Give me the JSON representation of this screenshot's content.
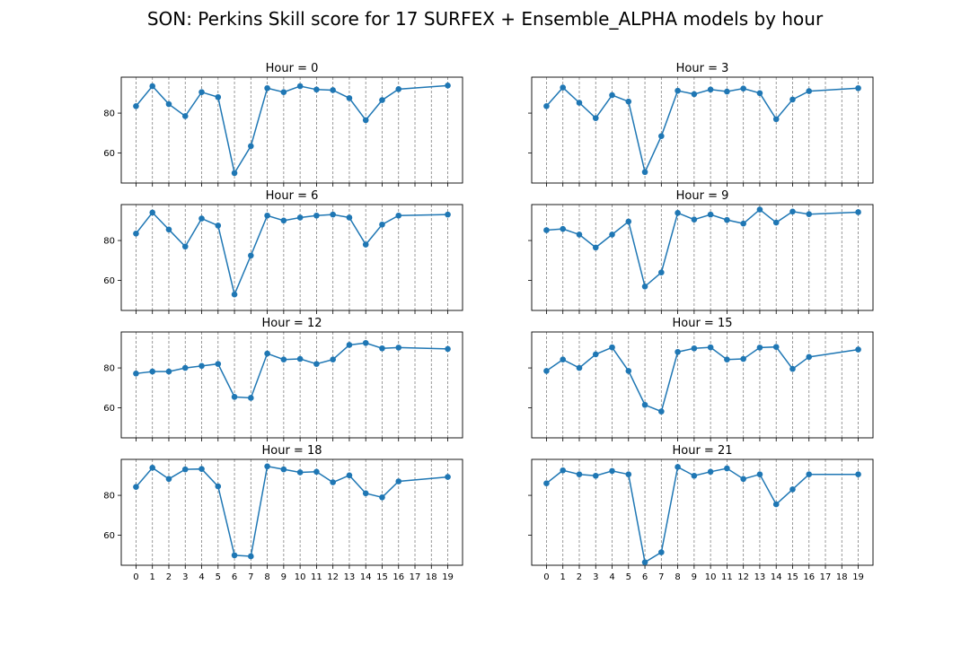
{
  "figure_title": "SON: Perkins Skill score for 17 SURFEX + Ensemble_ALPHA models by hour",
  "colors": {
    "series": "#1f77b4",
    "vgrid": "#808080"
  },
  "chart_data": {
    "type": "line",
    "grid": "vertical dashed lines at each x tick",
    "shared_x": true,
    "shared_y": true,
    "x_ticks": [
      0,
      1,
      2,
      3,
      4,
      5,
      6,
      7,
      8,
      9,
      10,
      11,
      12,
      13,
      14,
      15,
      16,
      17,
      18,
      19
    ],
    "x_tick_labels": [
      "0",
      "1",
      "2",
      "3",
      "4",
      "5",
      "6",
      "7",
      "8",
      "9",
      "10",
      "11",
      "12",
      "13",
      "14",
      "15",
      "16",
      "17",
      "18",
      "19"
    ],
    "xlim": [
      -0.9,
      19.9
    ],
    "ylim": [
      45,
      98
    ],
    "y_ticks": [
      60,
      80
    ],
    "y_tick_labels": [
      "60",
      "80"
    ],
    "x": [
      0,
      1,
      2,
      3,
      4,
      5,
      6,
      7,
      8,
      9,
      10,
      11,
      12,
      13,
      14,
      15,
      16,
      19
    ],
    "panels": [
      {
        "title": "Hour = 0",
        "values": [
          83.5,
          93.5,
          84.5,
          78.5,
          90.5,
          88,
          50,
          63.5,
          92.5,
          90.5,
          93.5,
          91.8,
          91.5,
          87.5,
          76.5,
          86.5,
          92,
          93.8
        ]
      },
      {
        "title": "Hour = 3",
        "values": [
          83.5,
          92.8,
          85.2,
          77.5,
          89,
          85.8,
          50.5,
          68.5,
          91.2,
          89.5,
          91.8,
          90.8,
          92.3,
          90,
          77,
          86.8,
          91,
          92.5
        ]
      },
      {
        "title": "Hour = 6",
        "values": [
          83.5,
          94,
          85.5,
          77,
          91,
          87.5,
          53,
          72.5,
          92.5,
          90,
          91.5,
          92.5,
          93,
          91.5,
          78,
          88,
          92.5,
          93
        ]
      },
      {
        "title": "Hour = 9",
        "values": [
          85.2,
          85.8,
          83,
          76.5,
          83,
          89.5,
          57,
          64,
          93.8,
          90.5,
          93,
          90.3,
          88.5,
          95.5,
          89,
          94.5,
          93.2,
          94.2
        ]
      },
      {
        "title": "Hour = 12",
        "values": [
          77.2,
          78.2,
          78.2,
          80,
          81,
          82,
          65.5,
          65,
          87.2,
          84.2,
          84.5,
          82,
          84.2,
          91.5,
          92.5,
          89.8,
          90.2,
          89.5
        ]
      },
      {
        "title": "Hour = 15",
        "values": [
          78.5,
          84.2,
          80,
          86.8,
          90.3,
          78.5,
          61.5,
          58.2,
          88,
          89.8,
          90.3,
          84.2,
          84.5,
          90.2,
          90.5,
          79.5,
          85.5,
          89.2
        ]
      },
      {
        "title": "Hour = 18",
        "values": [
          84.2,
          93.8,
          88.2,
          93,
          93.2,
          84.5,
          50,
          49.5,
          94.5,
          93,
          91.5,
          91.8,
          86.5,
          90,
          81,
          79,
          87,
          89.2
        ]
      },
      {
        "title": "Hour = 21",
        "values": [
          86,
          92.5,
          90.5,
          89.8,
          92.2,
          90.5,
          46.5,
          51.5,
          94.2,
          89.8,
          91.8,
          93.5,
          88.2,
          90.5,
          75.5,
          83,
          90.5,
          90.5
        ]
      }
    ]
  }
}
